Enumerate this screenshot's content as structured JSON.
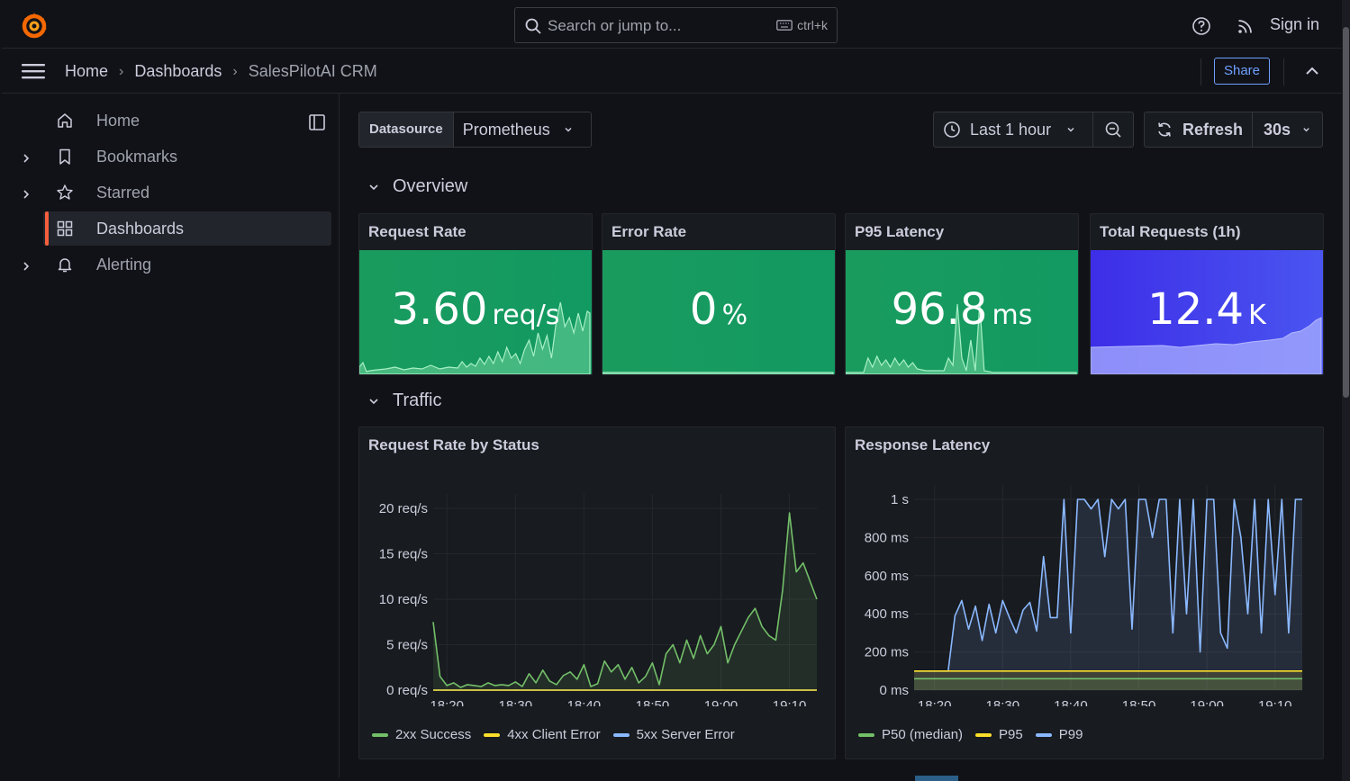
{
  "topbar": {
    "search_placeholder": "Search or jump to...",
    "search_shortcut": "ctrl+k",
    "signin": "Sign in"
  },
  "breadcrumb": {
    "home": "Home",
    "dashboards": "Dashboards",
    "current": "SalesPilotAI CRM",
    "share": "Share"
  },
  "sidebar": {
    "items": [
      {
        "label": "Home",
        "icon": "home-icon"
      },
      {
        "label": "Bookmarks",
        "icon": "bookmark-icon"
      },
      {
        "label": "Starred",
        "icon": "star-icon"
      },
      {
        "label": "Dashboards",
        "icon": "dashboards-icon"
      },
      {
        "label": "Alerting",
        "icon": "bell-icon"
      }
    ]
  },
  "toolbar": {
    "datasource_label": "Datasource",
    "datasource_value": "Prometheus",
    "time_range": "Last 1 hour",
    "refresh": "Refresh",
    "refresh_interval": "30s"
  },
  "rows": {
    "overview": "Overview",
    "traffic": "Traffic"
  },
  "stats": {
    "request_rate": {
      "title": "Request Rate",
      "value": "3.60",
      "unit": "req/s",
      "color": "#1a9b5e"
    },
    "error_rate": {
      "title": "Error Rate",
      "value": "0",
      "unit": "%",
      "color": "#1a9b5e"
    },
    "p95_latency": {
      "title": "P95 Latency",
      "value": "96.8",
      "unit": "ms",
      "color": "#1a9b5e"
    },
    "total_requests": {
      "title": "Total Requests (1h)",
      "value": "12.4",
      "unit": "K",
      "color": "#3d45e6"
    }
  },
  "chart_data": [
    {
      "type": "line",
      "title": "Request Rate by Status",
      "x_ticks": [
        "18:20",
        "18:30",
        "18:40",
        "18:50",
        "19:00",
        "19:10"
      ],
      "y_ticks": [
        "0 req/s",
        "5 req/s",
        "10 req/s",
        "15 req/s",
        "20 req/s"
      ],
      "ylim": [
        0,
        20
      ],
      "x": [
        "18:18",
        "18:19",
        "18:20",
        "18:21",
        "18:22",
        "18:23",
        "18:24",
        "18:25",
        "18:26",
        "18:27",
        "18:28",
        "18:29",
        "18:30",
        "18:31",
        "18:32",
        "18:33",
        "18:34",
        "18:35",
        "18:36",
        "18:37",
        "18:38",
        "18:39",
        "18:40",
        "18:41",
        "18:42",
        "18:43",
        "18:44",
        "18:45",
        "18:46",
        "18:47",
        "18:48",
        "18:49",
        "18:50",
        "18:51",
        "18:52",
        "18:53",
        "18:54",
        "18:55",
        "18:56",
        "18:57",
        "18:58",
        "18:59",
        "19:00",
        "19:01",
        "19:02",
        "19:03",
        "19:04",
        "19:05",
        "19:06",
        "19:07",
        "19:08",
        "19:09",
        "19:10",
        "19:11",
        "19:12",
        "19:13",
        "19:14"
      ],
      "series": [
        {
          "name": "2xx Success",
          "color": "#73bf69",
          "values": [
            7.5,
            1.5,
            0.5,
            0.8,
            0.3,
            0.6,
            0.5,
            0.4,
            0.8,
            0.5,
            0.6,
            0.5,
            0.9,
            0.4,
            1.8,
            0.8,
            2.2,
            1.0,
            0.6,
            1.6,
            2.0,
            1.2,
            2.8,
            0.4,
            0.7,
            3.2,
            2.0,
            2.8,
            1.2,
            2.5,
            0.8,
            1.5,
            3.0,
            0.6,
            4.0,
            5.0,
            3.0,
            5.5,
            3.5,
            6.0,
            4.0,
            5.0,
            7.0,
            3.0,
            5.0,
            6.5,
            8.0,
            9.0,
            7.0,
            6.0,
            5.5,
            11.0,
            19.5,
            13.0,
            14.0,
            12.0,
            10.0
          ]
        },
        {
          "name": "4xx Client Error",
          "color": "#fade2a",
          "values": [
            0,
            0,
            0,
            0,
            0,
            0,
            0,
            0,
            0,
            0,
            0,
            0,
            0,
            0,
            0,
            0,
            0,
            0,
            0,
            0,
            0,
            0,
            0,
            0,
            0,
            0,
            0,
            0,
            0,
            0,
            0,
            0,
            0,
            0,
            0,
            0,
            0,
            0,
            0,
            0,
            0,
            0,
            0,
            0,
            0,
            0,
            0,
            0,
            0,
            0,
            0,
            0,
            0,
            0,
            0,
            0,
            0
          ]
        },
        {
          "name": "5xx Server Error",
          "color": "#8ab8ff",
          "values": [
            0,
            0,
            0,
            0,
            0,
            0,
            0,
            0,
            0,
            0,
            0,
            0,
            0,
            0,
            0,
            0,
            0,
            0,
            0,
            0,
            0,
            0,
            0,
            0,
            0,
            0,
            0,
            0,
            0,
            0,
            0,
            0,
            0,
            0,
            0,
            0,
            0,
            0,
            0,
            0,
            0,
            0,
            0,
            0,
            0,
            0,
            0,
            0,
            0,
            0,
            0,
            0,
            0,
            0,
            0,
            0,
            0
          ]
        }
      ]
    },
    {
      "type": "line",
      "title": "Response Latency",
      "x_ticks": [
        "18:20",
        "18:30",
        "18:40",
        "18:50",
        "19:00",
        "19:10"
      ],
      "y_ticks": [
        "0 ms",
        "200 ms",
        "400 ms",
        "600 ms",
        "800 ms",
        "1 s"
      ],
      "ylim": [
        0,
        1000
      ],
      "x": [
        "18:17",
        "18:18",
        "18:19",
        "18:20",
        "18:21",
        "18:22",
        "18:23",
        "18:24",
        "18:25",
        "18:26",
        "18:27",
        "18:28",
        "18:29",
        "18:30",
        "18:31",
        "18:32",
        "18:33",
        "18:34",
        "18:35",
        "18:36",
        "18:37",
        "18:38",
        "18:39",
        "18:40",
        "18:41",
        "18:42",
        "18:43",
        "18:44",
        "18:45",
        "18:46",
        "18:47",
        "18:48",
        "18:49",
        "18:50",
        "18:51",
        "18:52",
        "18:53",
        "18:54",
        "18:55",
        "18:56",
        "18:57",
        "18:58",
        "18:59",
        "19:00",
        "19:01",
        "19:02",
        "19:03",
        "19:04",
        "19:05",
        "19:06",
        "19:07",
        "19:08",
        "19:09",
        "19:10",
        "19:11",
        "19:12",
        "19:13",
        "19:14"
      ],
      "series": [
        {
          "name": "P50 (median)",
          "color": "#73bf69",
          "values": [
            60,
            60,
            60,
            60,
            60,
            60,
            60,
            60,
            60,
            60,
            60,
            60,
            60,
            60,
            60,
            60,
            60,
            60,
            60,
            60,
            60,
            60,
            60,
            60,
            60,
            60,
            60,
            60,
            60,
            60,
            60,
            60,
            60,
            60,
            60,
            60,
            60,
            60,
            60,
            60,
            60,
            60,
            60,
            60,
            60,
            60,
            60,
            60,
            60,
            60,
            60,
            60,
            60,
            60,
            60,
            60,
            60,
            60
          ]
        },
        {
          "name": "P95",
          "color": "#fade2a",
          "values": [
            100,
            100,
            100,
            100,
            100,
            100,
            100,
            100,
            100,
            100,
            100,
            100,
            100,
            100,
            100,
            100,
            100,
            100,
            100,
            100,
            100,
            100,
            100,
            100,
            100,
            100,
            100,
            100,
            100,
            100,
            100,
            100,
            100,
            100,
            100,
            100,
            100,
            100,
            100,
            100,
            100,
            100,
            100,
            100,
            100,
            100,
            100,
            100,
            100,
            100,
            100,
            100,
            100,
            100,
            100,
            100,
            100,
            100
          ]
        },
        {
          "name": "P99",
          "color": "#8ab8ff",
          "values": [
            100,
            100,
            100,
            100,
            100,
            100,
            390,
            470,
            320,
            440,
            260,
            450,
            300,
            470,
            380,
            300,
            420,
            460,
            310,
            700,
            380,
            380,
            1000,
            300,
            1000,
            1000,
            950,
            1000,
            700,
            1000,
            950,
            1000,
            320,
            1000,
            1000,
            800,
            1000,
            1000,
            300,
            1000,
            400,
            1000,
            200,
            1000,
            1000,
            300,
            220,
            1000,
            800,
            400,
            1000,
            300,
            1000,
            500,
            1000,
            300,
            1000,
            1000
          ]
        }
      ]
    }
  ]
}
